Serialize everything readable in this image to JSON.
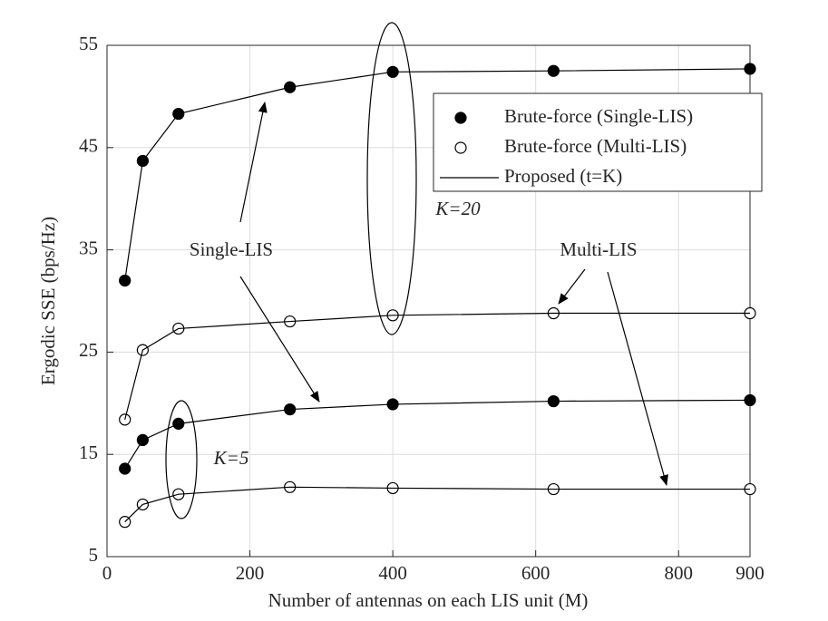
{
  "chart_data": {
    "type": "line",
    "x_label": "Number of antennas on each LIS unit (M)",
    "y_label": "Ergodic SSE (bps/Hz)",
    "x": [
      25,
      50,
      100,
      256,
      400,
      625,
      900
    ],
    "xlim": [
      0,
      900
    ],
    "xticks": [
      0,
      200,
      400,
      600,
      800,
      900
    ],
    "ylim": [
      5,
      55
    ],
    "yticks": [
      5,
      15,
      25,
      35,
      45,
      55
    ],
    "grid": true,
    "legend_position": "upper right",
    "series": [
      {
        "name": "Brute-force (Single-LIS)",
        "marker": "filled",
        "color": "#000000",
        "curves": [
          [
            32.0,
            43.7,
            48.3,
            50.9,
            52.4,
            52.5,
            52.7
          ],
          [
            13.6,
            16.4,
            18.0,
            19.4,
            19.9,
            20.2,
            20.3
          ]
        ]
      },
      {
        "name": "Brute-force (Multi-LIS)",
        "marker": "open",
        "color": "#000000",
        "curves": [
          [
            18.4,
            25.2,
            27.3,
            28.0,
            28.6,
            28.8,
            28.8
          ],
          [
            8.4,
            10.1,
            11.1,
            11.8,
            11.7,
            11.6,
            11.6
          ]
        ]
      },
      {
        "name": "Proposed (t=K)",
        "marker": "none",
        "color": "#000000",
        "curves": [
          [
            32.0,
            43.7,
            48.3,
            50.9,
            52.4,
            52.5,
            52.7
          ],
          [
            13.6,
            16.4,
            18.0,
            19.4,
            19.9,
            20.2,
            20.3
          ],
          [
            18.4,
            25.2,
            27.3,
            28.0,
            28.6,
            28.8,
            28.8
          ],
          [
            8.4,
            10.1,
            11.1,
            11.8,
            11.7,
            11.6,
            11.6
          ]
        ]
      }
    ],
    "annotations": [
      "Single-LIS",
      "Multi-LIS",
      "K=20",
      "K=5"
    ]
  }
}
